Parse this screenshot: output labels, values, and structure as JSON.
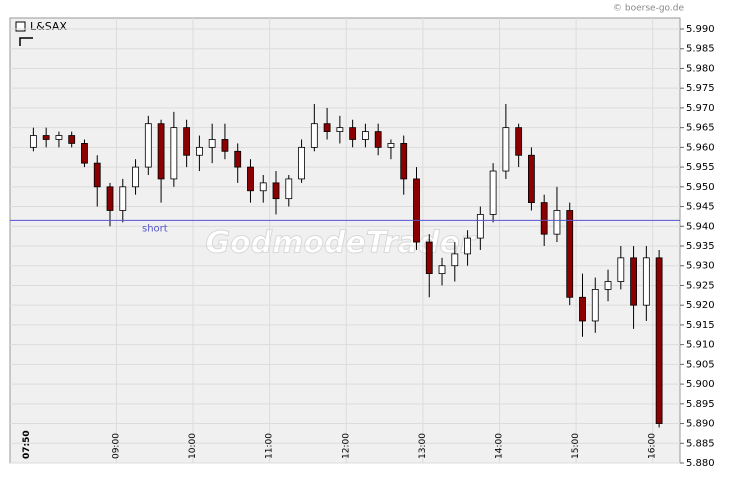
{
  "chart_data": {
    "type": "candlestick",
    "title": "L&SAX",
    "source": "© boerse-go.de",
    "watermark": "GodmodeTrader",
    "categories": [
      "07:50",
      null,
      null,
      null,
      null,
      null,
      null,
      "09:00",
      null,
      null,
      null,
      null,
      null,
      "10:00",
      null,
      null,
      null,
      null,
      null,
      "11:00",
      null,
      null,
      null,
      null,
      null,
      "12:00",
      null,
      null,
      null,
      null,
      null,
      "13:00",
      null,
      null,
      null,
      null,
      null,
      "14:00",
      null,
      null,
      null,
      null,
      null,
      "15:00",
      null,
      null,
      null,
      null,
      null,
      "16:00"
    ],
    "open": [
      5.96,
      5.963,
      5.962,
      5.963,
      5.961,
      5.956,
      5.95,
      5.944,
      5.95,
      5.955,
      5.966,
      5.952,
      5.965,
      5.958,
      5.96,
      5.962,
      5.959,
      5.955,
      5.949,
      5.951,
      5.947,
      5.952,
      5.96,
      5.966,
      5.964,
      5.965,
      5.962,
      5.964,
      5.96,
      5.961,
      5.952,
      5.936,
      5.928,
      5.93,
      5.933,
      5.937,
      5.943,
      5.954,
      5.965,
      5.958,
      5.946,
      5.938,
      5.944,
      5.922,
      5.916,
      5.924,
      5.926,
      5.932,
      5.92,
      5.932
    ],
    "high": [
      5.965,
      5.965,
      5.964,
      5.964,
      5.962,
      5.958,
      5.951,
      5.952,
      5.957,
      5.968,
      5.967,
      5.969,
      5.967,
      5.963,
      5.966,
      5.966,
      5.961,
      5.957,
      5.953,
      5.954,
      5.953,
      5.962,
      5.971,
      5.97,
      5.968,
      5.967,
      5.966,
      5.966,
      5.962,
      5.963,
      5.955,
      5.938,
      5.932,
      5.936,
      5.939,
      5.945,
      5.956,
      5.971,
      5.966,
      5.96,
      5.948,
      5.95,
      5.946,
      5.928,
      5.927,
      5.929,
      5.935,
      5.935,
      5.935,
      5.934
    ],
    "low": [
      5.959,
      5.96,
      5.96,
      5.96,
      5.955,
      5.945,
      5.94,
      5.941,
      5.948,
      5.953,
      5.946,
      5.95,
      5.955,
      5.954,
      5.956,
      5.957,
      5.951,
      5.946,
      5.946,
      5.943,
      5.945,
      5.951,
      5.959,
      5.962,
      5.961,
      5.96,
      5.96,
      5.958,
      5.957,
      5.948,
      5.934,
      5.922,
      5.925,
      5.926,
      5.93,
      5.934,
      5.941,
      5.952,
      5.955,
      5.944,
      5.935,
      5.936,
      5.92,
      5.912,
      5.913,
      5.921,
      5.924,
      5.914,
      5.916,
      5.889
    ],
    "close": [
      5.963,
      5.962,
      5.963,
      5.961,
      5.956,
      5.95,
      5.944,
      5.95,
      5.955,
      5.966,
      5.952,
      5.965,
      5.958,
      5.96,
      5.962,
      5.959,
      5.955,
      5.949,
      5.951,
      5.947,
      5.952,
      5.96,
      5.966,
      5.964,
      5.965,
      5.962,
      5.964,
      5.96,
      5.961,
      5.952,
      5.936,
      5.928,
      5.93,
      5.933,
      5.937,
      5.943,
      5.954,
      5.965,
      5.958,
      5.946,
      5.938,
      5.944,
      5.922,
      5.916,
      5.924,
      5.926,
      5.932,
      5.92,
      5.932,
      5.89
    ],
    "up_color": "#ffffff",
    "down_color": "#8b0000",
    "hline": {
      "value": 5.9415,
      "label": "short",
      "color": "#5555cc"
    },
    "ylim": [
      5.88,
      5.99
    ],
    "yticks": [
      {
        "value": 5.88,
        "label": "5.880"
      },
      {
        "value": 5.885,
        "label": "5.885"
      },
      {
        "value": 5.89,
        "label": "5.890"
      },
      {
        "value": 5.895,
        "label": "5.895"
      },
      {
        "value": 5.9,
        "label": "5.900"
      },
      {
        "value": 5.905,
        "label": "5.905"
      },
      {
        "value": 5.91,
        "label": "5.910"
      },
      {
        "value": 5.915,
        "label": "5.915"
      },
      {
        "value": 5.92,
        "label": "5.920"
      },
      {
        "value": 5.925,
        "label": "5.925"
      },
      {
        "value": 5.93,
        "label": "5.930"
      },
      {
        "value": 5.935,
        "label": "5.935"
      },
      {
        "value": 5.94,
        "label": "5.940"
      },
      {
        "value": 5.945,
        "label": "5.945"
      },
      {
        "value": 5.95,
        "label": "5.950"
      },
      {
        "value": 5.955,
        "label": "5.955"
      },
      {
        "value": 5.96,
        "label": "5.960"
      },
      {
        "value": 5.965,
        "label": "5.965"
      },
      {
        "value": 5.97,
        "label": "5.970"
      },
      {
        "value": 5.975,
        "label": "5.975"
      },
      {
        "value": 5.98,
        "label": "5.980"
      },
      {
        "value": 5.985,
        "label": "5.985"
      },
      {
        "value": 5.99,
        "label": "5.990"
      }
    ],
    "grid": true
  }
}
